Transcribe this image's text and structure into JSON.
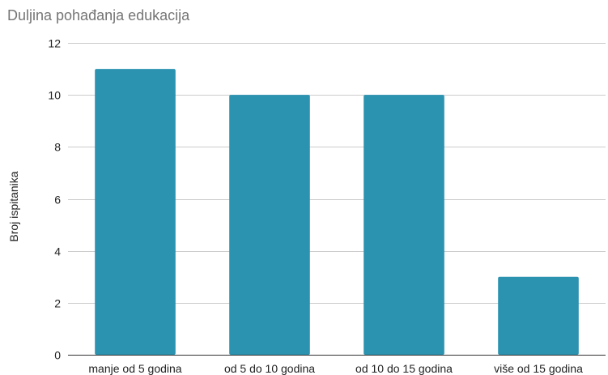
{
  "chart_data": {
    "type": "bar",
    "title": "Duljina pohađanja edukacija",
    "xlabel": "",
    "ylabel": "Broj ispitanika",
    "categories": [
      "manje od 5 godina",
      "od 5 do 10 godina",
      "od 10 do 15 godina",
      "više od 15 godina"
    ],
    "values": [
      11,
      10,
      10,
      3
    ],
    "ylim": [
      0,
      12
    ],
    "yticks": [
      0,
      2,
      4,
      6,
      8,
      10,
      12
    ],
    "grid": true,
    "legend": "none",
    "bar_color": "#2b93b0"
  }
}
